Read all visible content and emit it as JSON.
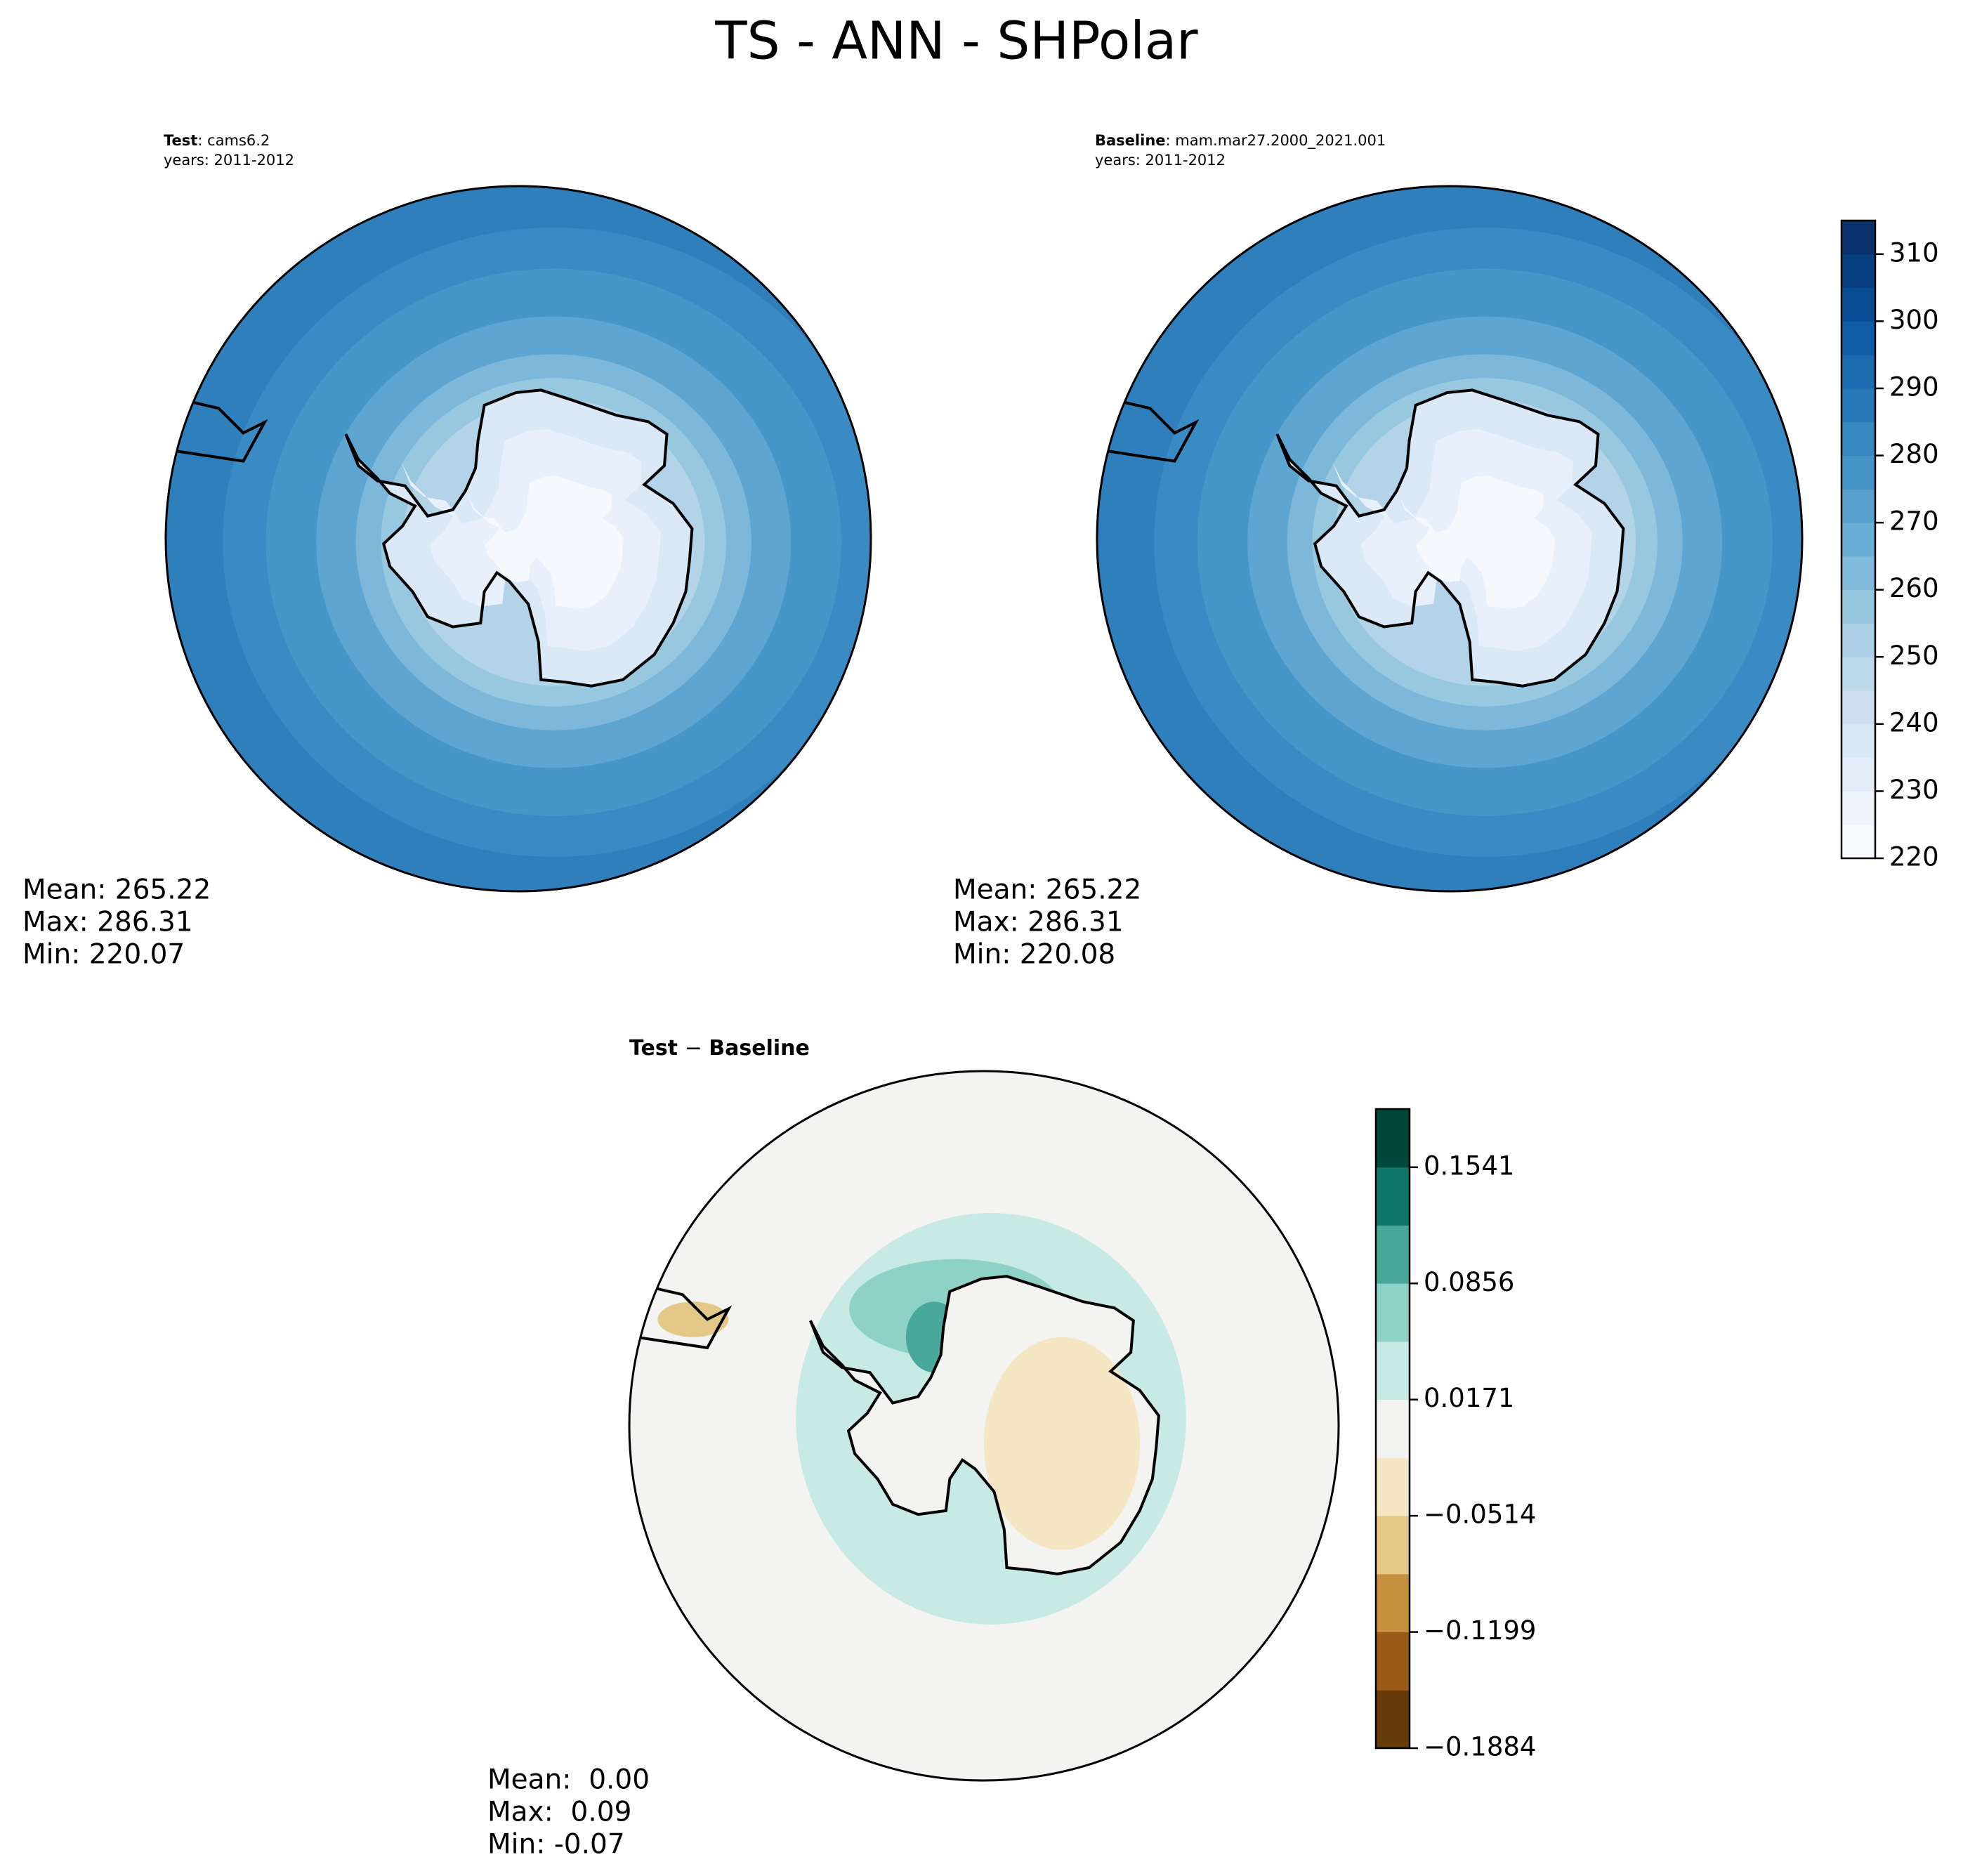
{
  "title": "TS - ANN - SHPolar",
  "panels": [
    {
      "label": "Test",
      "label_rest": ": cams6.2",
      "years": "years: 2011-2012",
      "stats": [
        "Mean: 265.22",
        "Max: 286.31",
        "Min: 220.07"
      ]
    },
    {
      "label": "Baseline",
      "label_rest": ": mam.mar27.2000_2021.001",
      "years": "years: 2011-2012",
      "stats": [
        "Mean: 265.22",
        "Max: 286.31",
        "Min: 220.08"
      ]
    },
    {
      "label": "Test",
      "label_rest": " − ",
      "label_end": "Baseline",
      "stats": [
        "Mean:  0.00",
        "Max:  0.09",
        "Min: -0.07"
      ]
    }
  ],
  "colorbars": [
    {
      "lim": [
        220,
        315
      ],
      "ticks": [
        220,
        230,
        240,
        250,
        260,
        270,
        280,
        290,
        300,
        310
      ],
      "colors": [
        "#f7fbff",
        "#eef5fc",
        "#e3eef9",
        "#d9e8f5",
        "#cde0f1",
        "#bed8ec",
        "#abd0e6",
        "#97c6df",
        "#82badb",
        "#6aaed6",
        "#58a1cf",
        "#4694c7",
        "#3787c0",
        "#2979b9",
        "#1c6aaf",
        "#105ba4",
        "#084d96",
        "#083f80",
        "#08306b"
      ]
    },
    {
      "lim": [
        -0.1884,
        0.1884
      ],
      "ticks": [
        {
          "value": -0.1884,
          "label": "−0.1884"
        },
        {
          "value": -0.1199,
          "label": "−0.1199"
        },
        {
          "value": -0.0514,
          "label": "−0.0514"
        },
        {
          "value": 0.0171,
          "label": "0.0171"
        },
        {
          "value": 0.0856,
          "label": "0.0856"
        },
        {
          "value": 0.1541,
          "label": "0.1541"
        }
      ],
      "colors": [
        "#673a0a",
        "#9a5b16",
        "#c6903f",
        "#e3c888",
        "#f6e7c4",
        "#f3f4f2",
        "#c8eae4",
        "#8ed1c6",
        "#48a89a",
        "#107569",
        "#00473b"
      ]
    }
  ]
}
